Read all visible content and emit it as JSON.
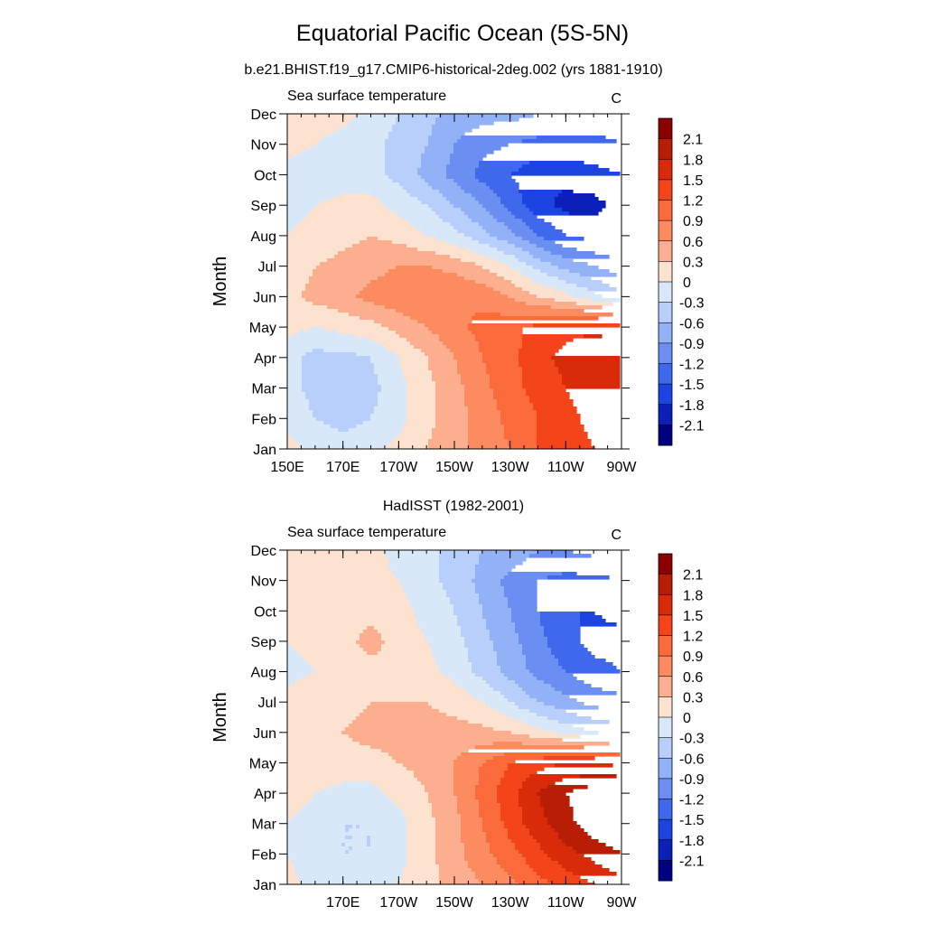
{
  "title": "Equatorial Pacific Ocean (5S-5N)",
  "chart_data": [
    {
      "type": "heatmap",
      "title": "b.e21.BHIST.f19_g17.CMIP6-historical-2deg.002 (yrs 1881-1910)",
      "left_label": "Sea surface temperature",
      "right_label": "C",
      "xlabel": "",
      "ylabel": "Month",
      "xlim_lon_east": [
        150,
        270
      ],
      "ylim": [
        "Jan",
        "Dec"
      ],
      "x_ticks": [
        "150E",
        "170E",
        "170W",
        "150W",
        "130W",
        "110W",
        "90W"
      ],
      "x_tick_lon_east": [
        150,
        170,
        190,
        210,
        230,
        250,
        270
      ],
      "y_ticks": [
        "Jan",
        "Feb",
        "Mar",
        "Apr",
        "May",
        "Jun",
        "Jul",
        "Aug",
        "Sep",
        "Oct",
        "Nov",
        "Dec"
      ],
      "x_lon_east": [
        150,
        160,
        170,
        180,
        190,
        200,
        210,
        220,
        230,
        240,
        250,
        260,
        270
      ],
      "z_sst_anomaly": [
        [
          0.1,
          -0.1,
          -0.2,
          -0.1,
          0.1,
          0.3,
          0.5,
          0.7,
          0.9,
          1.2,
          1.3,
          1.5,
          1.6
        ],
        [
          -0.1,
          -0.3,
          -0.4,
          -0.3,
          -0.1,
          0.2,
          0.5,
          0.7,
          1.0,
          1.2,
          1.4,
          1.6,
          1.7
        ],
        [
          -0.2,
          -0.4,
          -0.5,
          -0.4,
          -0.1,
          0.2,
          0.5,
          0.8,
          1.1,
          1.3,
          1.5,
          1.7,
          1.8
        ],
        [
          -0.2,
          -0.4,
          -0.4,
          -0.3,
          0.0,
          0.3,
          0.6,
          0.9,
          1.1,
          1.4,
          1.6,
          1.8,
          1.8
        ],
        [
          0.1,
          0.0,
          0.1,
          0.2,
          0.4,
          0.6,
          0.8,
          1.0,
          1.1,
          1.3,
          1.4,
          1.4,
          1.3
        ],
        [
          0.2,
          0.4,
          0.5,
          0.7,
          0.8,
          0.9,
          0.9,
          0.8,
          0.6,
          0.3,
          0.1,
          -0.2,
          -0.5
        ],
        [
          0.1,
          0.3,
          0.4,
          0.5,
          0.6,
          0.6,
          0.5,
          0.3,
          0.0,
          -0.4,
          -0.7,
          -0.9,
          -1.1
        ],
        [
          0.0,
          0.1,
          0.2,
          0.3,
          0.2,
          0.0,
          -0.2,
          -0.5,
          -0.8,
          -1.2,
          -1.5,
          -1.6,
          -1.6
        ],
        [
          -0.1,
          0.0,
          0.1,
          0.1,
          -0.1,
          -0.3,
          -0.6,
          -0.9,
          -1.3,
          -1.7,
          -1.9,
          -1.9,
          -1.7
        ],
        [
          -0.1,
          -0.2,
          -0.2,
          -0.2,
          -0.4,
          -0.7,
          -1.0,
          -1.3,
          -1.5,
          -1.7,
          -1.7,
          -1.6,
          -1.5
        ],
        [
          0.1,
          0.0,
          -0.1,
          -0.2,
          -0.4,
          -0.6,
          -0.9,
          -1.1,
          -1.2,
          -1.3,
          -1.3,
          -1.3,
          -1.2
        ],
        [
          0.2,
          0.1,
          0.1,
          -0.1,
          -0.3,
          -0.5,
          -0.7,
          -0.8,
          -0.8,
          -0.9,
          -1.0,
          -1.0,
          -1.0
        ]
      ],
      "colorbar": {
        "labels": [
          "2.1",
          "1.8",
          "1.5",
          "1.2",
          "0.9",
          "0.6",
          "0.3",
          "0",
          "-0.3",
          "-0.6",
          "-0.9",
          "-1.2",
          "-1.5",
          "-1.8",
          "-2.1"
        ],
        "levels": [
          2.1,
          1.8,
          1.5,
          1.2,
          0.9,
          0.6,
          0.3,
          0,
          -0.3,
          -0.6,
          -0.9,
          -1.2,
          -1.5,
          -1.8,
          -2.1
        ],
        "colors_top_to_bottom": [
          "#8b0000",
          "#b81d06",
          "#d92b0a",
          "#f4441a",
          "#fb6a3a",
          "#fc8b5f",
          "#fcae8e",
          "#fde3cf",
          "#d8e8f8",
          "#b7cffa",
          "#93b1f6",
          "#6a8ef1",
          "#4068ec",
          "#1c44e0",
          "#0b20b8",
          "#000080"
        ]
      }
    },
    {
      "type": "heatmap",
      "title": "HadISST (1982-2001)",
      "left_label": "Sea surface temperature",
      "right_label": "C",
      "xlabel": "",
      "ylabel": "Month",
      "xlim_lon_east": [
        150,
        270
      ],
      "ylim": [
        "Jan",
        "Dec"
      ],
      "x_ticks": [
        "170E",
        "170W",
        "150W",
        "130W",
        "110W",
        "90W"
      ],
      "x_tick_lon_east": [
        170,
        190,
        210,
        230,
        250,
        270
      ],
      "y_ticks": [
        "Jan",
        "Feb",
        "Mar",
        "Apr",
        "May",
        "Jun",
        "Jul",
        "Aug",
        "Sep",
        "Oct",
        "Nov",
        "Dec"
      ],
      "x_lon_east": [
        150,
        160,
        170,
        180,
        190,
        200,
        210,
        220,
        230,
        240,
        250,
        260,
        270
      ],
      "z_sst_anomaly": [
        [
          0.1,
          -0.1,
          -0.2,
          -0.2,
          0.0,
          0.2,
          0.4,
          0.6,
          0.8,
          1.1,
          1.3,
          1.5,
          1.7
        ],
        [
          0.0,
          -0.2,
          -0.3,
          -0.3,
          -0.1,
          0.2,
          0.5,
          0.8,
          1.1,
          1.4,
          1.7,
          1.9,
          2.1
        ],
        [
          0.0,
          -0.1,
          -0.3,
          -0.3,
          -0.1,
          0.2,
          0.5,
          0.9,
          1.3,
          1.7,
          2.0,
          2.3,
          2.4
        ],
        [
          0.1,
          0.0,
          -0.1,
          -0.1,
          0.1,
          0.3,
          0.6,
          1.0,
          1.4,
          1.8,
          2.1,
          2.3,
          2.3
        ],
        [
          0.2,
          0.2,
          0.2,
          0.2,
          0.3,
          0.4,
          0.6,
          0.9,
          1.2,
          1.4,
          1.5,
          1.5,
          1.4
        ],
        [
          0.2,
          0.3,
          0.3,
          0.4,
          0.4,
          0.4,
          0.4,
          0.4,
          0.3,
          0.1,
          -0.1,
          -0.3,
          -0.4
        ],
        [
          0.1,
          0.2,
          0.2,
          0.3,
          0.3,
          0.3,
          0.2,
          0.0,
          -0.3,
          -0.6,
          -0.8,
          -1.0,
          -1.1
        ],
        [
          -0.1,
          0.0,
          0.2,
          0.2,
          0.2,
          0.1,
          -0.1,
          -0.4,
          -0.7,
          -1.0,
          -1.2,
          -1.4,
          -1.5
        ],
        [
          0.0,
          0.1,
          0.2,
          0.4,
          0.2,
          0.0,
          -0.2,
          -0.5,
          -0.8,
          -1.1,
          -1.4,
          -1.6,
          -1.6
        ],
        [
          0.1,
          0.2,
          0.2,
          0.2,
          0.1,
          -0.1,
          -0.3,
          -0.6,
          -0.9,
          -1.2,
          -1.5,
          -1.5,
          -1.4
        ],
        [
          0.1,
          0.2,
          0.1,
          0.1,
          0.0,
          -0.2,
          -0.4,
          -0.7,
          -1.0,
          -1.2,
          -1.3,
          -1.3,
          -1.2
        ],
        [
          0.1,
          0.1,
          0.1,
          0.1,
          -0.1,
          -0.2,
          -0.4,
          -0.6,
          -0.7,
          -0.9,
          -0.9,
          -0.8,
          -0.8
        ]
      ],
      "colorbar": {
        "labels": [
          "2.1",
          "1.8",
          "1.5",
          "1.2",
          "0.9",
          "0.6",
          "0.3",
          "0",
          "-0.3",
          "-0.6",
          "-0.9",
          "-1.2",
          "-1.5",
          "-1.8",
          "-2.1"
        ],
        "levels": [
          2.1,
          1.8,
          1.5,
          1.2,
          0.9,
          0.6,
          0.3,
          0,
          -0.3,
          -0.6,
          -0.9,
          -1.2,
          -1.5,
          -1.8,
          -2.1
        ],
        "colors_top_to_bottom": [
          "#8b0000",
          "#b81d06",
          "#d92b0a",
          "#f4441a",
          "#fb6a3a",
          "#fc8b5f",
          "#fcae8e",
          "#fde3cf",
          "#d8e8f8",
          "#b7cffa",
          "#93b1f6",
          "#6a8ef1",
          "#4068ec",
          "#1c44e0",
          "#0b20b8",
          "#000080"
        ]
      }
    }
  ]
}
